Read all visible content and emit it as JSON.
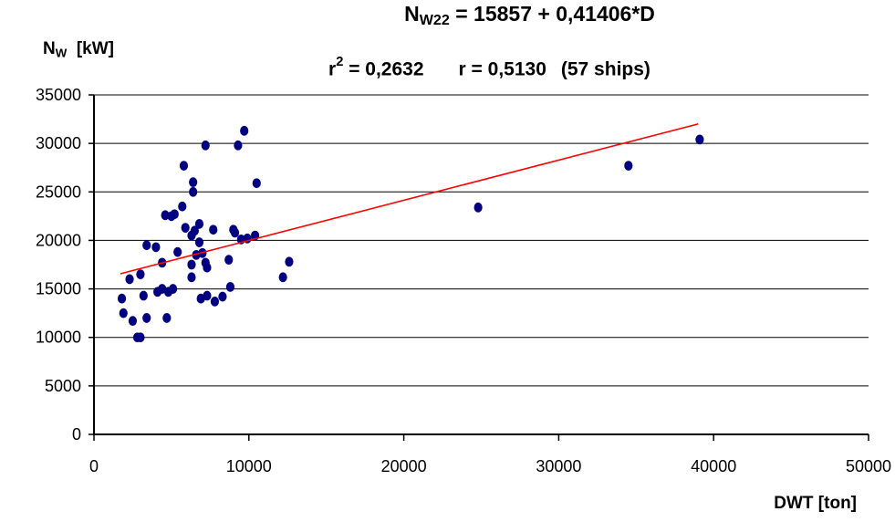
{
  "header": {
    "equation_symbol": "N",
    "equation_subscript": "W22",
    "equation_rest": " = 15857 + 0,41406*D",
    "stats_r2_symbol": "r",
    "stats_r2_sup": "2",
    "stats_r2_value": " = 0,2632",
    "stats_r": "r = 0,5130",
    "stats_ships": "(57 ships)"
  },
  "chart_data": {
    "type": "scatter",
    "title": "NW22 = 15857 + 0,41406*D",
    "subtitle": "r2 = 0,2632     r = 0,5130   (57 ships)",
    "ylabel": "NW [kW]",
    "ylabel_symbol": "N",
    "ylabel_subscript": "W",
    "ylabel_unit": "[kW]",
    "xlabel": "DWT [ton]",
    "xlim": [
      0,
      50000
    ],
    "ylim": [
      0,
      35000
    ],
    "x_ticks": [
      0,
      10000,
      20000,
      30000,
      40000,
      50000
    ],
    "y_ticks": [
      0,
      5000,
      10000,
      15000,
      20000,
      25000,
      30000,
      35000
    ],
    "grid": "horizontal",
    "legend": "none",
    "colors": {
      "points": "#000080",
      "fit": "#ff0000",
      "grid": "#000000"
    },
    "fit_line": {
      "intercept": 15857,
      "slope": 0.41406,
      "x_range": [
        1700,
        39000
      ]
    },
    "points": [
      {
        "x": 1800,
        "y": 14000
      },
      {
        "x": 1900,
        "y": 12500
      },
      {
        "x": 2300,
        "y": 16000
      },
      {
        "x": 2500,
        "y": 11700
      },
      {
        "x": 2800,
        "y": 10000
      },
      {
        "x": 3000,
        "y": 10000
      },
      {
        "x": 3000,
        "y": 16500
      },
      {
        "x": 3200,
        "y": 14300
      },
      {
        "x": 3400,
        "y": 19500
      },
      {
        "x": 3400,
        "y": 12000
      },
      {
        "x": 4000,
        "y": 19300
      },
      {
        "x": 4100,
        "y": 14700
      },
      {
        "x": 4400,
        "y": 17700
      },
      {
        "x": 4400,
        "y": 15000
      },
      {
        "x": 4600,
        "y": 22600
      },
      {
        "x": 4700,
        "y": 12000
      },
      {
        "x": 4800,
        "y": 14700
      },
      {
        "x": 5000,
        "y": 22500
      },
      {
        "x": 5100,
        "y": 15000
      },
      {
        "x": 5200,
        "y": 22700
      },
      {
        "x": 5400,
        "y": 18800
      },
      {
        "x": 5700,
        "y": 23500
      },
      {
        "x": 5800,
        "y": 27700
      },
      {
        "x": 5900,
        "y": 21300
      },
      {
        "x": 6300,
        "y": 20500
      },
      {
        "x": 6300,
        "y": 16200
      },
      {
        "x": 6300,
        "y": 17500
      },
      {
        "x": 6400,
        "y": 26000
      },
      {
        "x": 6400,
        "y": 25000
      },
      {
        "x": 6500,
        "y": 21000
      },
      {
        "x": 6600,
        "y": 18500
      },
      {
        "x": 6800,
        "y": 21700
      },
      {
        "x": 6800,
        "y": 19800
      },
      {
        "x": 6900,
        "y": 14000
      },
      {
        "x": 7000,
        "y": 18700
      },
      {
        "x": 7200,
        "y": 29800
      },
      {
        "x": 7200,
        "y": 17700
      },
      {
        "x": 7300,
        "y": 17200
      },
      {
        "x": 7300,
        "y": 14300
      },
      {
        "x": 7700,
        "y": 21100
      },
      {
        "x": 7800,
        "y": 13700
      },
      {
        "x": 8300,
        "y": 14200
      },
      {
        "x": 8700,
        "y": 18000
      },
      {
        "x": 8800,
        "y": 15200
      },
      {
        "x": 9000,
        "y": 21100
      },
      {
        "x": 9100,
        "y": 20800
      },
      {
        "x": 9300,
        "y": 29800
      },
      {
        "x": 9500,
        "y": 20100
      },
      {
        "x": 9700,
        "y": 31300
      },
      {
        "x": 10400,
        "y": 20500
      },
      {
        "x": 10500,
        "y": 25900
      },
      {
        "x": 12200,
        "y": 16200
      },
      {
        "x": 12600,
        "y": 17800
      },
      {
        "x": 24800,
        "y": 23400
      },
      {
        "x": 34500,
        "y": 27700
      },
      {
        "x": 39100,
        "y": 30400
      },
      {
        "x": 9900,
        "y": 20200
      }
    ]
  }
}
